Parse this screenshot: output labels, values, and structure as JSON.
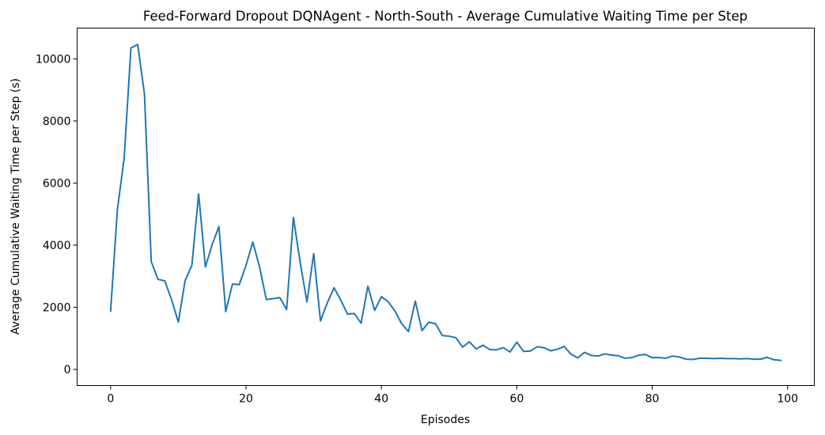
{
  "chart_data": {
    "type": "line",
    "title": "Feed-Forward Dropout DQNAgent - North-South - Average Cumulative Waiting Time per Step",
    "xlabel": "Episodes",
    "ylabel": "Average Cumulative Waiting Time per Step (s)",
    "xlim": [
      -4.95,
      103.95
    ],
    "ylim": [
      -520,
      10990
    ],
    "xticks": [
      0,
      20,
      40,
      60,
      80,
      100
    ],
    "yticks": [
      0,
      2000,
      4000,
      6000,
      8000,
      10000
    ],
    "grid": false,
    "legend": "none",
    "series": [
      {
        "color": "#1f77b4",
        "x": [
          0,
          1,
          2,
          3,
          4,
          5,
          6,
          7,
          8,
          9,
          10,
          11,
          12,
          13,
          14,
          15,
          16,
          17,
          18,
          19,
          20,
          21,
          22,
          23,
          24,
          25,
          26,
          27,
          28,
          29,
          30,
          31,
          32,
          33,
          34,
          35,
          36,
          37,
          38,
          39,
          40,
          41,
          42,
          43,
          44,
          45,
          46,
          47,
          48,
          49,
          50,
          51,
          52,
          53,
          54,
          55,
          56,
          57,
          58,
          59,
          60,
          61,
          62,
          63,
          64,
          65,
          66,
          67,
          68,
          69,
          70,
          71,
          72,
          73,
          74,
          75,
          76,
          77,
          78,
          79,
          80,
          81,
          82,
          83,
          84,
          85,
          86,
          87,
          88,
          89,
          90,
          91,
          92,
          93,
          94,
          95,
          96,
          97,
          98,
          99
        ],
        "values": [
          1880,
          5150,
          6800,
          10350,
          10460,
          8860,
          3470,
          2900,
          2850,
          2250,
          1520,
          2860,
          3350,
          5650,
          3300,
          4020,
          4600,
          1860,
          2750,
          2730,
          3350,
          4100,
          3300,
          2250,
          2280,
          2310,
          1930,
          4890,
          3450,
          2170,
          3730,
          1560,
          2140,
          2630,
          2230,
          1780,
          1800,
          1490,
          2680,
          1900,
          2340,
          2180,
          1880,
          1470,
          1220,
          2200,
          1250,
          1520,
          1470,
          1090,
          1070,
          1020,
          720,
          890,
          660,
          780,
          640,
          630,
          700,
          560,
          880,
          580,
          590,
          730,
          700,
          600,
          650,
          740,
          490,
          370,
          550,
          450,
          430,
          500,
          460,
          440,
          360,
          380,
          460,
          480,
          380,
          380,
          360,
          430,
          400,
          330,
          320,
          360,
          360,
          350,
          360,
          350,
          350,
          340,
          350,
          330,
          330,
          390,
          310,
          290
        ]
      }
    ]
  }
}
